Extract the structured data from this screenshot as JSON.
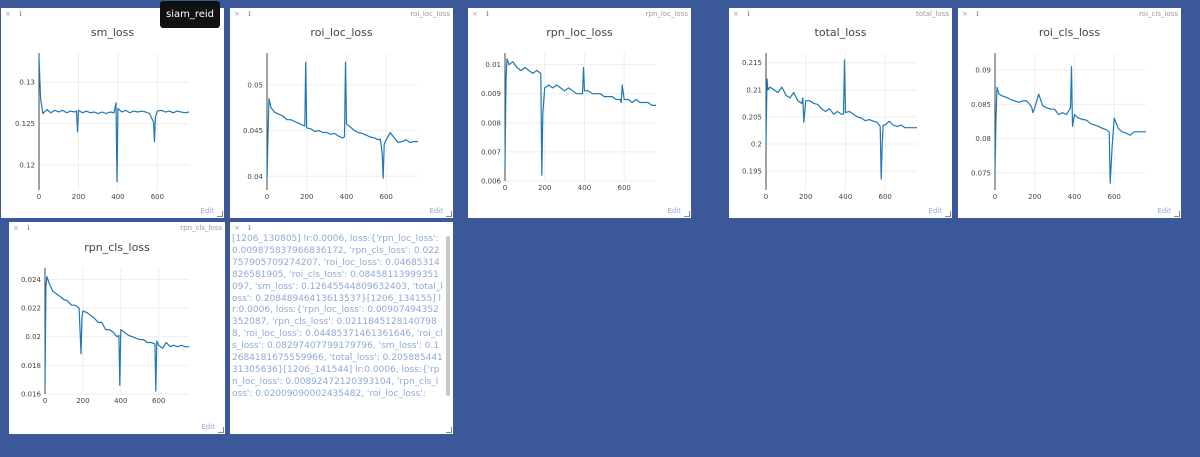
{
  "ui": {
    "edit_label": "Edit",
    "tooltip": "siam_reid",
    "window_controls": "× ℹ"
  },
  "colors": {
    "background": "#3b5998",
    "line": "#1f77b4"
  },
  "panes": [
    {
      "id": "sm_loss",
      "window_title": ""
    },
    {
      "id": "roi_loc_loss",
      "window_title": "roi_loc_loss"
    },
    {
      "id": "rpn_loc_loss",
      "window_title": "rpn_loc_loss"
    },
    {
      "id": "total_loss",
      "window_title": "total_loss"
    },
    {
      "id": "roi_cls_loss",
      "window_title": "roi_cls_loss"
    },
    {
      "id": "rpn_cls_loss",
      "window_title": "rpn_cls_loss"
    },
    {
      "id": "log",
      "window_title": ""
    }
  ],
  "log_text": "[1206_130805] lr:0.0006, loss:{'rpn_loc_loss': 0.009875837966836172, 'rpn_cls_loss': 0.022757905709274207, 'roi_loc_loss': 0.04685314826581905, 'roi_cls_loss': 0.08458113999351097, 'sm_loss': 0.12645544809632403, 'total_loss': 0.20848946413613537}[1206_134155] lr:0.0006, loss:{'rpn_loc_loss': 0.00907494352352087, 'rpn_cls_loss': 0.02118451281407988, 'roi_loc_loss': 0.04485371461361646, 'roi_cls_loss': 0.08297407799179796, 'sm_loss': 0.12684181675559966, 'total_loss': 0.20588544131305636}[1206_141544] lr:0.0006, loss:{'rpn_loc_loss': 0.00892472120393104, 'rpn_cls_loss': 0.02009090002435482, 'roi_loc_loss':",
  "chart_data": [
    {
      "type": "line",
      "title": "sm_loss",
      "xticks": [
        0,
        200,
        400,
        600
      ],
      "yticks": [
        0.12,
        0.125,
        0.13
      ],
      "ylim": [
        0.117,
        0.1335
      ],
      "x": [
        0,
        8,
        20,
        40,
        60,
        80,
        100,
        120,
        140,
        160,
        180,
        190,
        195,
        200,
        220,
        240,
        260,
        280,
        300,
        320,
        340,
        360,
        380,
        390,
        395,
        400,
        420,
        440,
        460,
        480,
        500,
        520,
        540,
        560,
        580,
        585,
        590,
        600,
        620,
        640,
        660,
        680,
        700,
        720,
        740,
        760
      ],
      "values": [
        0.133,
        0.128,
        0.1262,
        0.1267,
        0.1263,
        0.1266,
        0.1264,
        0.1266,
        0.1263,
        0.1265,
        0.1264,
        0.1265,
        0.124,
        0.1266,
        0.1263,
        0.1265,
        0.1263,
        0.1264,
        0.1262,
        0.1264,
        0.1262,
        0.1264,
        0.1263,
        0.1275,
        0.118,
        0.1268,
        0.1264,
        0.1266,
        0.1263,
        0.1265,
        0.1264,
        0.1265,
        0.1264,
        0.1262,
        0.1252,
        0.1228,
        0.1258,
        0.1265,
        0.1266,
        0.1264,
        0.1265,
        0.1263,
        0.1265,
        0.1264,
        0.1263,
        0.1264
      ]
    },
    {
      "type": "line",
      "title": "roi_loc_loss",
      "xticks": [
        0,
        200,
        400,
        600
      ],
      "yticks": [
        0.04,
        0.045,
        0.05
      ],
      "ylim": [
        0.0385,
        0.0535
      ],
      "x": [
        0,
        5,
        10,
        20,
        40,
        60,
        80,
        100,
        120,
        140,
        160,
        180,
        190,
        195,
        200,
        220,
        240,
        260,
        280,
        300,
        320,
        340,
        360,
        380,
        390,
        395,
        400,
        420,
        440,
        460,
        480,
        500,
        520,
        540,
        560,
        570,
        580,
        585,
        590,
        600,
        620,
        640,
        660,
        680,
        700,
        720,
        740,
        760
      ],
      "values": [
        0.0395,
        0.0445,
        0.0485,
        0.0475,
        0.047,
        0.0468,
        0.0466,
        0.0462,
        0.0462,
        0.046,
        0.0458,
        0.0456,
        0.0455,
        0.0525,
        0.0453,
        0.0452,
        0.0449,
        0.045,
        0.0448,
        0.0448,
        0.0446,
        0.0447,
        0.0444,
        0.0442,
        0.0443,
        0.0525,
        0.0457,
        0.0454,
        0.045,
        0.0448,
        0.0447,
        0.0445,
        0.0443,
        0.0442,
        0.044,
        0.0441,
        0.0425,
        0.0398,
        0.0435,
        0.044,
        0.0448,
        0.0442,
        0.0437,
        0.0438,
        0.044,
        0.0437,
        0.0438,
        0.0438
      ]
    },
    {
      "type": "line",
      "title": "rpn_loc_loss",
      "xticks": [
        0,
        200,
        400,
        600
      ],
      "yticks": [
        0.006,
        0.007,
        0.008,
        0.009,
        0.01
      ],
      "ylim": [
        0.006,
        0.0104
      ],
      "x": [
        0,
        5,
        10,
        20,
        40,
        60,
        80,
        100,
        120,
        140,
        160,
        180,
        185,
        190,
        200,
        220,
        240,
        260,
        280,
        300,
        320,
        340,
        360,
        380,
        390,
        395,
        400,
        420,
        440,
        460,
        480,
        500,
        520,
        540,
        560,
        580,
        585,
        590,
        600,
        620,
        640,
        660,
        680,
        700,
        720,
        740,
        760
      ],
      "values": [
        0.0065,
        0.0095,
        0.0102,
        0.01,
        0.0101,
        0.0099,
        0.0098,
        0.0099,
        0.0098,
        0.0097,
        0.0098,
        0.0097,
        0.0062,
        0.0083,
        0.0092,
        0.0093,
        0.0092,
        0.0093,
        0.0092,
        0.0091,
        0.0092,
        0.0091,
        0.009,
        0.009,
        0.009,
        0.0099,
        0.0091,
        0.0091,
        0.009,
        0.009,
        0.009,
        0.0089,
        0.0089,
        0.0089,
        0.0088,
        0.0088,
        0.0087,
        0.0093,
        0.0088,
        0.0088,
        0.0087,
        0.0088,
        0.0087,
        0.0087,
        0.0087,
        0.0086,
        0.0086
      ]
    },
    {
      "type": "line",
      "title": "total_loss",
      "xticks": [
        0,
        200,
        400,
        600
      ],
      "yticks": [
        0.195,
        0.2,
        0.205,
        0.21,
        0.215
      ],
      "ylim": [
        0.1915,
        0.2168
      ],
      "x": [
        0,
        5,
        10,
        20,
        40,
        60,
        80,
        100,
        120,
        140,
        160,
        180,
        185,
        190,
        200,
        220,
        240,
        260,
        280,
        300,
        320,
        340,
        360,
        380,
        390,
        395,
        400,
        420,
        440,
        460,
        480,
        500,
        520,
        540,
        560,
        575,
        580,
        585,
        590,
        600,
        620,
        640,
        660,
        680,
        700,
        720,
        740,
        760
      ],
      "values": [
        0.2,
        0.212,
        0.21,
        0.2105,
        0.21,
        0.2095,
        0.2105,
        0.209,
        0.2085,
        0.2095,
        0.208,
        0.2075,
        0.2085,
        0.204,
        0.208,
        0.208,
        0.2075,
        0.2073,
        0.2065,
        0.206,
        0.2065,
        0.2055,
        0.206,
        0.2055,
        0.2055,
        0.2155,
        0.2058,
        0.206,
        0.2055,
        0.205,
        0.2048,
        0.2043,
        0.2045,
        0.2042,
        0.204,
        0.2032,
        0.1935,
        0.2,
        0.2035,
        0.2035,
        0.2042,
        0.2035,
        0.2032,
        0.2035,
        0.203,
        0.203,
        0.203,
        0.203
      ]
    },
    {
      "type": "line",
      "title": "roi_cls_loss",
      "xticks": [
        0,
        200,
        400,
        600
      ],
      "yticks": [
        0.075,
        0.08,
        0.085,
        0.09
      ],
      "ylim": [
        0.0725,
        0.0925
      ],
      "x": [
        0,
        5,
        10,
        20,
        40,
        60,
        80,
        100,
        120,
        140,
        160,
        180,
        185,
        190,
        200,
        220,
        240,
        260,
        280,
        300,
        320,
        340,
        360,
        380,
        385,
        390,
        400,
        420,
        440,
        460,
        480,
        500,
        520,
        540,
        560,
        575,
        580,
        590,
        600,
        620,
        640,
        660,
        680,
        700,
        720,
        740,
        760
      ],
      "values": [
        0.075,
        0.083,
        0.0875,
        0.0865,
        0.0862,
        0.086,
        0.0857,
        0.0855,
        0.0853,
        0.0855,
        0.0855,
        0.0848,
        0.0845,
        0.0838,
        0.0845,
        0.0865,
        0.0848,
        0.0845,
        0.0843,
        0.0843,
        0.0835,
        0.0838,
        0.0835,
        0.0845,
        0.0905,
        0.0818,
        0.0835,
        0.083,
        0.0828,
        0.0827,
        0.0822,
        0.082,
        0.0818,
        0.0815,
        0.0813,
        0.081,
        0.0735,
        0.079,
        0.083,
        0.0815,
        0.081,
        0.0808,
        0.0805,
        0.081,
        0.081,
        0.081,
        0.081
      ]
    },
    {
      "type": "line",
      "title": "rpn_cls_loss",
      "xticks": [
        0,
        200,
        400,
        600
      ],
      "yticks": [
        0.016,
        0.018,
        0.02,
        0.022,
        0.024
      ],
      "ylim": [
        0.016,
        0.0248
      ],
      "x": [
        0,
        5,
        10,
        20,
        40,
        60,
        80,
        100,
        120,
        140,
        160,
        180,
        190,
        195,
        200,
        220,
        240,
        260,
        280,
        300,
        320,
        340,
        360,
        380,
        390,
        395,
        400,
        420,
        440,
        460,
        480,
        500,
        520,
        540,
        560,
        580,
        585,
        590,
        600,
        620,
        640,
        660,
        680,
        700,
        720,
        740,
        760
      ],
      "values": [
        0.0165,
        0.0235,
        0.0242,
        0.0238,
        0.0232,
        0.023,
        0.0228,
        0.0226,
        0.0225,
        0.0222,
        0.0222,
        0.022,
        0.0188,
        0.0213,
        0.0218,
        0.0217,
        0.0215,
        0.0213,
        0.021,
        0.021,
        0.0205,
        0.0205,
        0.0203,
        0.02,
        0.0201,
        0.0166,
        0.0205,
        0.0203,
        0.0201,
        0.02,
        0.0199,
        0.0198,
        0.0198,
        0.0196,
        0.0196,
        0.0195,
        0.0162,
        0.0197,
        0.0194,
        0.0192,
        0.0196,
        0.0193,
        0.0194,
        0.0193,
        0.0194,
        0.0193,
        0.0193
      ]
    }
  ]
}
